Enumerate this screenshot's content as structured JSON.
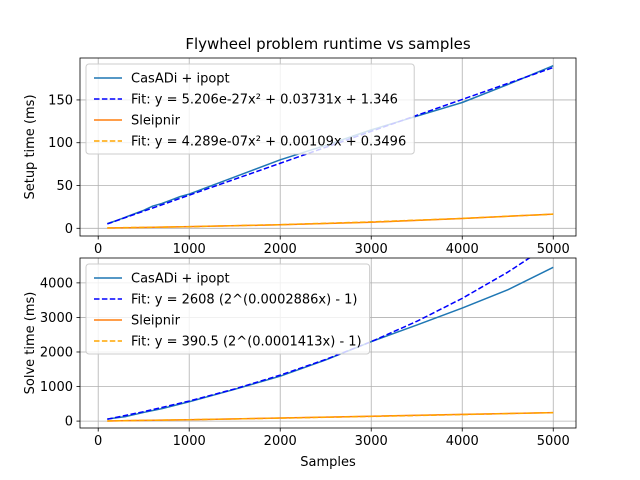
{
  "chart_data": [
    {
      "type": "line",
      "title": "Flywheel problem runtime vs samples",
      "xlabel": "",
      "ylabel": "Setup time (ms)",
      "xlim": [
        -200,
        5250
      ],
      "ylim": [
        -9,
        199
      ],
      "xticks": [
        0,
        1000,
        2000,
        3000,
        4000,
        5000
      ],
      "yticks": [
        0,
        50,
        100,
        150
      ],
      "grid": true,
      "legend_position": "top-left",
      "series": [
        {
          "name": "CasADi + ipopt",
          "color": "#1f77b4",
          "style": "solid",
          "x": [
            100,
            200,
            300,
            400,
            500,
            600,
            700,
            800,
            900,
            1000,
            1500,
            2000,
            2500,
            3000,
            3500,
            4000,
            4500,
            5000
          ],
          "y": [
            5.5,
            9,
            13,
            17,
            21,
            26,
            29,
            33,
            37,
            40,
            60,
            80,
            97,
            115,
            131,
            147,
            168,
            190
          ]
        },
        {
          "name": "Fit: y = 5.206e-27x² + 0.03731x + 1.346",
          "color": "#0000ff",
          "style": "dashed",
          "x": [
            100,
            1000,
            2000,
            3000,
            4000,
            5000
          ],
          "y": [
            5.1,
            38.7,
            76.0,
            113.3,
            150.6,
            187.9
          ]
        },
        {
          "name": "Sleipnir",
          "color": "#ff7f0e",
          "style": "solid",
          "x": [
            100,
            1000,
            2000,
            3000,
            4000,
            5000
          ],
          "y": [
            0.3,
            1.9,
            4.1,
            7.1,
            11.5,
            16.5
          ]
        },
        {
          "name": "Fit: y = 4.289e-07x² + 0.00109x + 0.3496",
          "color": "#ffa500",
          "style": "dashed",
          "x": [
            100,
            1000,
            2000,
            3000,
            4000,
            5000
          ],
          "y": [
            0.45,
            1.87,
            4.24,
            7.48,
            11.57,
            16.52
          ]
        }
      ]
    },
    {
      "type": "line",
      "title": "",
      "xlabel": "Samples",
      "ylabel": "Solve time (ms)",
      "xlim": [
        -200,
        5250
      ],
      "ylim": [
        -200,
        4720
      ],
      "xticks": [
        0,
        1000,
        2000,
        3000,
        4000,
        5000
      ],
      "yticks": [
        0,
        1000,
        2000,
        3000,
        4000
      ],
      "grid": true,
      "legend_position": "top-left",
      "series": [
        {
          "name": "CasADi + ipopt",
          "color": "#1f77b4",
          "style": "solid",
          "x": [
            100,
            300,
            500,
            700,
            1000,
            1500,
            2000,
            2500,
            3000,
            3500,
            4000,
            4500,
            5000
          ],
          "y": [
            60,
            130,
            250,
            360,
            560,
            920,
            1300,
            1770,
            2300,
            2780,
            3270,
            3800,
            4450
          ]
        },
        {
          "name": "Fit: y = 2608 (2^(0.0002886x) - 1)",
          "color": "#0000ff",
          "style": "dashed",
          "x": [
            100,
            500,
            1000,
            1500,
            2000,
            2500,
            3000,
            3500,
            4000,
            4500,
            5000
          ],
          "y": [
            53,
            273,
            580,
            931,
            1330,
            1784,
            2300,
            2886,
            3552,
            4310,
            5171
          ]
        },
        {
          "name": "Sleipnir",
          "color": "#ff7f0e",
          "style": "solid",
          "x": [
            100,
            1000,
            2000,
            3000,
            4000,
            5000
          ],
          "y": [
            4,
            40,
            90,
            140,
            195,
            245
          ]
        },
        {
          "name": "Fit: y = 390.5 (2^(0.0001413x) - 1)",
          "color": "#ffa500",
          "style": "dashed",
          "x": [
            100,
            1000,
            2000,
            3000,
            4000,
            5000
          ],
          "y": [
            4,
            40,
            85,
            135,
            188,
            245
          ]
        }
      ]
    }
  ]
}
